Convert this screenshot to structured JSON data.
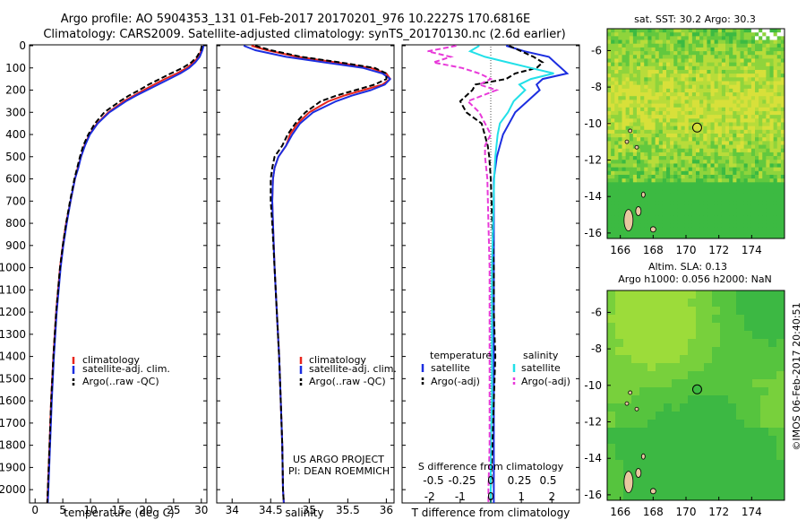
{
  "header": {
    "line1": "Argo profile: AO 5904353_131 01-Feb-2017 20170201_976 10.2227S 170.6816E",
    "line2": "Climatology: CARS2009. Satellite-adjusted climatology: synTS_20170130.nc (2.6d earlier)"
  },
  "colors": {
    "climatology": "#e8251c",
    "satellite": "#1c2ee0",
    "argo": "#000000",
    "sal_sat": "#22e0e8",
    "sal_argo": "#e83ad9"
  },
  "depth_axis": {
    "ticks": [
      "0",
      "100",
      "200",
      "300",
      "400",
      "500",
      "600",
      "700",
      "800",
      "900",
      "1000",
      "1100",
      "1200",
      "1300",
      "1400",
      "1500",
      "1600",
      "1700",
      "1800",
      "1900",
      "2000"
    ]
  },
  "chart_data": [
    {
      "type": "line",
      "name": "temperature",
      "xlabel": "temperature (deg C)",
      "xlim": [
        -1,
        31
      ],
      "ylim": [
        0,
        2060
      ],
      "xticks": [
        "0",
        "5",
        "10",
        "15",
        "20",
        "25",
        "30"
      ],
      "legend": [
        "climatology",
        "satellite-adj. clim.",
        "Argo(..raw -QC)"
      ],
      "depth": [
        0,
        20,
        50,
        75,
        100,
        125,
        150,
        175,
        200,
        225,
        250,
        300,
        350,
        400,
        450,
        500,
        550,
        600,
        700,
        800,
        900,
        1000,
        1200,
        1400,
        1600,
        1800,
        2000,
        2060
      ],
      "series": [
        {
          "name": "climatology",
          "values": [
            30.2,
            30.0,
            29.5,
            28.6,
            27.4,
            25.6,
            23.4,
            21.5,
            19.6,
            17.8,
            16.0,
            13.2,
            11.2,
            9.8,
            8.9,
            8.3,
            7.7,
            7.2,
            6.4,
            5.6,
            5.0,
            4.5,
            3.8,
            3.3,
            2.9,
            2.6,
            2.3,
            2.2
          ]
        },
        {
          "name": "satellite-adj. clim.",
          "values": [
            30.4,
            30.2,
            29.7,
            28.9,
            27.8,
            26.2,
            24.2,
            22.2,
            20.2,
            18.2,
            16.4,
            13.4,
            11.3,
            9.9,
            9.0,
            8.3,
            7.8,
            7.2,
            6.4,
            5.7,
            5.1,
            4.6,
            3.9,
            3.4,
            3.0,
            2.7,
            2.4,
            2.3
          ]
        },
        {
          "name": "Argo(..raw -QC)",
          "values": [
            30.1,
            29.9,
            29.2,
            28.2,
            26.6,
            24.5,
            22.5,
            20.5,
            18.8,
            16.9,
            15.3,
            12.5,
            10.8,
            9.6,
            8.7,
            8.1,
            7.6,
            7.1,
            6.3,
            5.6,
            5.0,
            4.5,
            3.8,
            3.3,
            2.9,
            2.6,
            2.3,
            2.2
          ]
        }
      ]
    },
    {
      "type": "line",
      "name": "salinity",
      "xlabel": "salinity",
      "xlim": [
        33.8,
        36.1
      ],
      "ylim": [
        0,
        2060
      ],
      "xticks": [
        "34",
        "34.5",
        "35",
        "35.5",
        "36"
      ],
      "legend": [
        "climatology",
        "satellite-adj. clim.",
        "Argo(..raw -QC)"
      ],
      "annotation": [
        "US ARGO PROJECT",
        "PI: DEAN ROEMMICH"
      ],
      "depth": [
        0,
        20,
        50,
        75,
        100,
        125,
        150,
        175,
        200,
        225,
        250,
        300,
        350,
        400,
        450,
        500,
        550,
        600,
        700,
        800,
        1000,
        1200,
        1400,
        1600,
        1800,
        2000,
        2060
      ],
      "series": [
        {
          "name": "climatology",
          "values": [
            34.25,
            34.45,
            34.85,
            35.35,
            35.8,
            36.0,
            36.05,
            35.95,
            35.7,
            35.45,
            35.25,
            35.0,
            34.85,
            34.75,
            34.7,
            34.6,
            34.55,
            34.53,
            34.52,
            34.53,
            34.55,
            34.58,
            34.61,
            34.63,
            34.65,
            34.66,
            34.67
          ]
        },
        {
          "name": "satellite-adj. clim.",
          "values": [
            34.15,
            34.3,
            34.7,
            35.2,
            35.7,
            35.95,
            36.05,
            35.98,
            35.8,
            35.55,
            35.35,
            35.05,
            34.88,
            34.78,
            34.7,
            34.6,
            34.55,
            34.53,
            34.52,
            34.53,
            34.55,
            34.58,
            34.61,
            34.63,
            34.65,
            34.66,
            34.67
          ]
        },
        {
          "name": "Argo(..raw -QC)",
          "values": [
            34.3,
            34.5,
            34.9,
            35.4,
            35.85,
            36.0,
            36.0,
            35.85,
            35.6,
            35.35,
            35.15,
            34.95,
            34.82,
            34.72,
            34.65,
            34.55,
            34.52,
            34.5,
            34.5,
            34.52,
            34.55,
            34.58,
            34.61,
            34.63,
            34.65,
            34.66,
            34.67
          ]
        }
      ]
    },
    {
      "type": "line",
      "name": "difference",
      "xlabel": "T difference from climatology",
      "xlabel2": "S difference from climatology",
      "xlim": [
        -2.9,
        2.9
      ],
      "ylim": [
        0,
        2060
      ],
      "xticks": [
        "-2",
        "-1",
        "0",
        "1",
        "2"
      ],
      "sticks": [
        "-0.5",
        "-0.25",
        "0",
        "0.25",
        "0.5"
      ],
      "legend_headers": [
        "temperature",
        "salinity"
      ],
      "legend_t": [
        "satellite",
        "Argo(-adj)"
      ],
      "legend_s": [
        "satellite",
        "Argo(-adj)"
      ],
      "depth": [
        0,
        25,
        50,
        75,
        100,
        125,
        150,
        175,
        200,
        250,
        300,
        350,
        400,
        450,
        500,
        600,
        800,
        1000,
        1200,
        1400,
        1600,
        1800,
        2000,
        2060
      ],
      "series": [
        {
          "name": "T satellite",
          "values": [
            0.5,
            1.1,
            1.9,
            2.1,
            2.3,
            2.5,
            1.7,
            1.5,
            1.6,
            1.2,
            0.8,
            0.6,
            0.4,
            0.3,
            0.2,
            0.1,
            0.1,
            0.1,
            0.1,
            0.1,
            0.1,
            0.1,
            0.1,
            0.1
          ]
        },
        {
          "name": "T Argo(-adj)",
          "values": [
            0.6,
            1.0,
            1.4,
            1.7,
            1.5,
            0.8,
            0.5,
            -0.5,
            -0.6,
            -1.0,
            -0.8,
            -0.3,
            -0.2,
            -0.1,
            -0.05,
            0,
            0.05,
            0.1,
            0.1,
            0.15,
            0.1,
            0.05,
            0.0,
            0.0
          ]
        },
        {
          "name": "S satellite",
          "values": [
            -0.1,
            -0.18,
            -0.05,
            0.15,
            0.35,
            0.55,
            0.35,
            0.25,
            0.3,
            0.2,
            0.15,
            0.08,
            0.06,
            0.05,
            0.04,
            0.03,
            0.02,
            0.01,
            0.01,
            0.01,
            0.01,
            0.0,
            0.0,
            0.0
          ]
        },
        {
          "name": "S Argo(-adj)",
          "values": [
            -0.3,
            -0.55,
            -0.35,
            -0.5,
            -0.25,
            -0.1,
            0.0,
            -0.1,
            0.05,
            -0.2,
            -0.1,
            -0.05,
            0.0,
            -0.05,
            -0.05,
            -0.03,
            -0.02,
            -0.01,
            -0.01,
            -0.01,
            -0.01,
            -0.01,
            -0.02,
            -0.02
          ]
        }
      ]
    },
    {
      "type": "heatmap",
      "name": "sst-map",
      "title": "sat. SST: 30.2 Argo: 30.3",
      "xticks": [
        "166",
        "168",
        "170",
        "172",
        "174"
      ],
      "yticks": [
        "-6",
        "-8",
        "-10",
        "-12",
        "-14",
        "-16"
      ],
      "xlim": [
        165.2,
        176
      ],
      "ylim": [
        -16.3,
        -4.8
      ],
      "profile": {
        "lon": 170.68,
        "lat": -10.22
      }
    },
    {
      "type": "heatmap",
      "name": "sla-map",
      "title": "Altim. SLA: 0.13",
      "title2": "Argo h1000: 0.056 h2000: NaN",
      "xticks": [
        "166",
        "168",
        "170",
        "172",
        "174"
      ],
      "yticks": [
        "-6",
        "-8",
        "-10",
        "-12",
        "-14",
        "-16"
      ],
      "xlim": [
        165.2,
        176
      ],
      "ylim": [
        -16.3,
        -4.8
      ],
      "profile": {
        "lon": 170.68,
        "lat": -10.22
      }
    }
  ],
  "credit": "©IMOS 06-Feb-2017 20:40:51"
}
